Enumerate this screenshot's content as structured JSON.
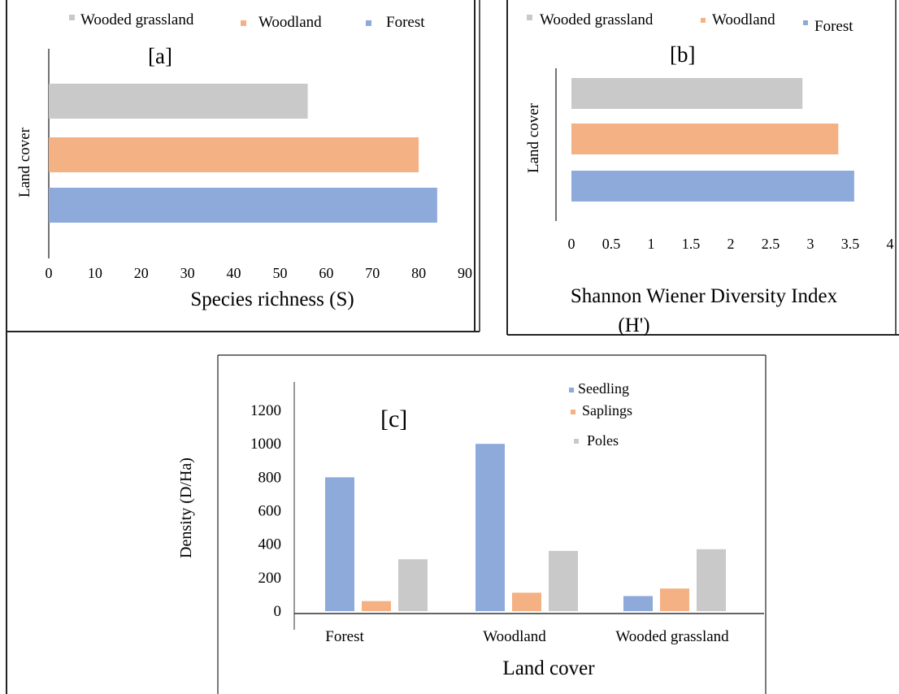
{
  "colors": {
    "forest": "#8eaadb",
    "woodland": "#f4b183",
    "wooded_grassland": "#c9c9c9",
    "seedling": "#8eaadb",
    "saplings": "#f4b183",
    "poles": "#c9c9c9"
  },
  "chart_data": [
    {
      "type": "bar",
      "orientation": "horizontal",
      "panel": "[a]",
      "legend": [
        "Wooded grassland",
        "Woodland",
        "Forest"
      ],
      "legend_placement": "top",
      "categories": [
        "Wooded grassland",
        "Woodland",
        "Forest"
      ],
      "values": [
        56,
        80,
        84
      ],
      "xlabel": "Species richness (S)",
      "ylabel": "Land cover",
      "xlim": [
        0,
        90
      ],
      "xticks": [
        "0",
        "10",
        "20",
        "30",
        "40",
        "50",
        "60",
        "70",
        "80",
        "90"
      ],
      "grid": false
    },
    {
      "type": "bar",
      "orientation": "horizontal",
      "panel": "[b]",
      "legend": [
        "Wooded grassland",
        "Woodland",
        "Forest"
      ],
      "legend_placement": "top",
      "categories": [
        "Wooded grassland",
        "Woodland",
        "Forest"
      ],
      "values": [
        2.9,
        3.35,
        3.55
      ],
      "xlabel_line1": "Shannon Wiener Diversity Index",
      "xlabel_line2": "(H')",
      "ylabel": "Land cover",
      "xlim": [
        0,
        4
      ],
      "xticks": [
        "0",
        "0.5",
        "1",
        "1.5",
        "2",
        "2.5",
        "3",
        "3.5",
        "4"
      ],
      "grid": false
    },
    {
      "type": "bar",
      "orientation": "vertical",
      "panel": "[c]",
      "categories": [
        "Forest",
        "Woodland",
        "Wooded grassland"
      ],
      "series": [
        {
          "name": "Seedling",
          "values": [
            800,
            1000,
            90
          ]
        },
        {
          "name": "Saplings",
          "values": [
            60,
            110,
            135
          ]
        },
        {
          "name": "Poles",
          "values": [
            310,
            360,
            370
          ]
        }
      ],
      "legend_placement": "top-right",
      "xlabel": "Land cover",
      "ylabel": "Density (D/Ha)",
      "ylim": [
        0,
        1200
      ],
      "yticks": [
        "0",
        "200",
        "400",
        "600",
        "800",
        "1000",
        "1200"
      ],
      "grid": false
    }
  ]
}
